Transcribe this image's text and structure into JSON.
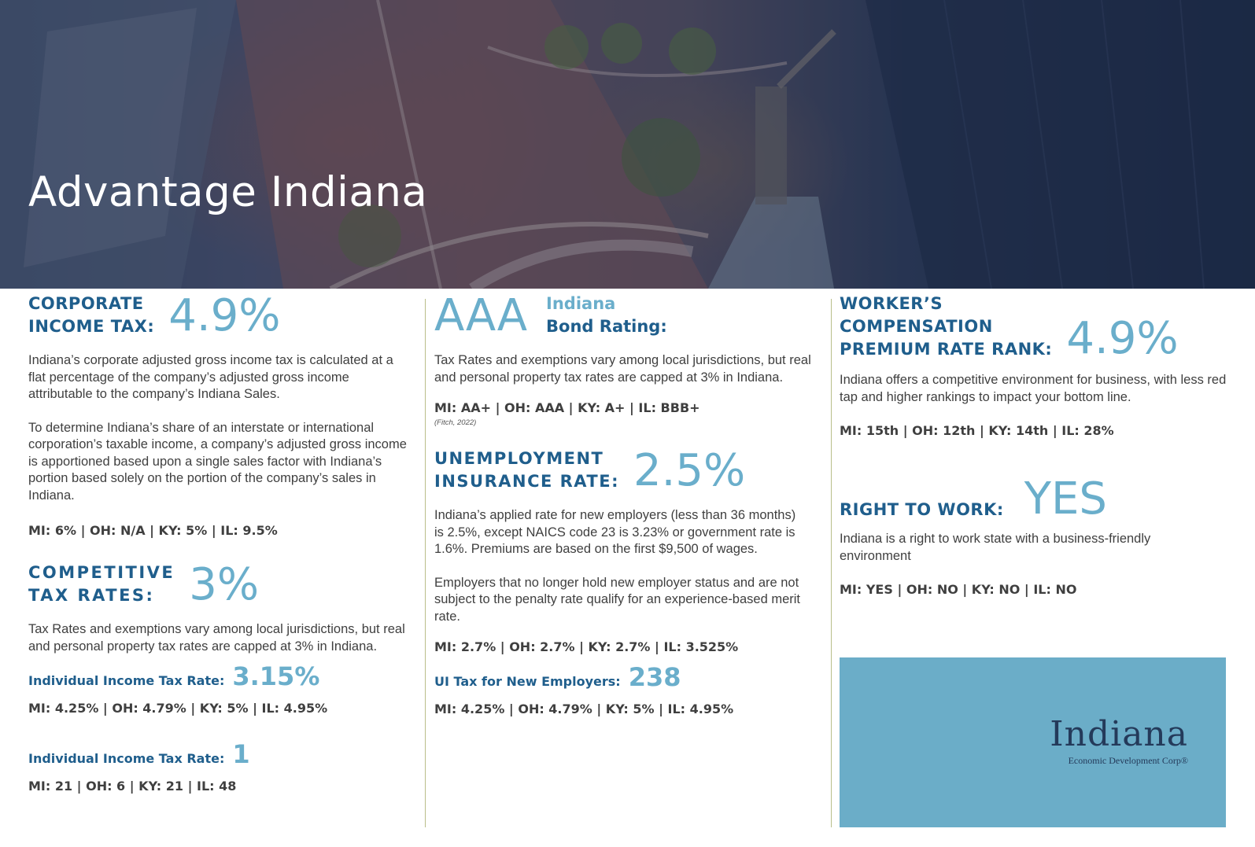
{
  "hero": {
    "title": "Advantage Indiana"
  },
  "corporate": {
    "label_line1": "CORPORATE",
    "label_line2": "INCOME TAX:",
    "value": "4.9%",
    "para1": "Indiana’s corporate adjusted gross income tax is calculated at a flat percentage of the company’s adjusted gross income attributable to the company’s Indiana Sales.",
    "para2": "To determine Indiana’s share of an interstate or international corporation’s taxable income, a company’s adjusted gross income is apportioned based upon a single sales factor with Indiana’s portion based solely on the portion of the company’s sales in Indiana.",
    "compare": "MI: 6%  |  OH: N/A  |  KY: 5%  |  IL: 9.5%"
  },
  "competitive": {
    "label_line1": "COMPETITIVE",
    "label_line2": "TAX RATES:",
    "value": "3%",
    "para": "Tax Rates and exemptions vary among local jurisdictions, but real and personal property tax rates are capped at 3% in Indiana.",
    "sub1_label": "Individual Income Tax Rate:",
    "sub1_value": "3.15%",
    "sub1_compare": "MI: 4.25%  |  OH: 4.79%  |  KY: 5%  |  IL: 4.95%",
    "sub2_label": "Individual Income Tax Rate:",
    "sub2_value": "1",
    "sub2_compare": "MI: 21  |  OH: 6  |  KY: 21  |  IL: 48"
  },
  "bond": {
    "value": "AAA",
    "label_line1": "Indiana",
    "label_line2": "Bond Rating:",
    "para": "Tax Rates and exemptions vary among local jurisdictions, but real and personal property tax rates are capped at 3% in Indiana.",
    "compare": "MI: AA+  |  OH: AAA  |  KY: A+  |  IL: BBB+",
    "source": "(Fitch, 2022)"
  },
  "unemployment": {
    "label_line1": "UNEMPLOYMENT",
    "label_line2": "INSURANCE RATE:",
    "value": "2.5%",
    "para1": "Indiana’s applied rate for new employers (less than 36 months) is 2.5%, except NAICS code 23 is 3.23% or government rate is 1.6%. Premiums are based on the first $9,500 of wages.",
    "para2": "Employers that no longer hold new employer status and are not subject to the penalty rate qualify for an experience-based merit rate.",
    "compare": "MI: 2.7%  |  OH: 2.7%  |  KY: 2.7%  |  IL: 3.525%",
    "sub_label": "UI Tax for New Employers:",
    "sub_value": "238",
    "sub_compare": "MI: 4.25%  |  OH: 4.79%  |  KY: 5%  |  IL: 4.95%"
  },
  "workers": {
    "label_line1": "WORKER’S",
    "label_line2": "COMPENSATION",
    "label_line3": "PREMIUM RATE RANK:",
    "value": "4.9%",
    "para": "Indiana offers a competitive environment for business, with less red tap and higher rankings to impact your bottom line.",
    "compare": "MI: 15th  |  OH: 12th  |  KY: 14th  |  IL: 28%"
  },
  "right_to_work": {
    "label": "RIGHT TO WORK:",
    "value": "YES",
    "para": "Indiana is a right to work state with a business-friendly environment",
    "compare": "MI: YES  |  OH: NO  |  KY: NO  |  IL: NO"
  },
  "logo": {
    "word": "Indiana",
    "sub": "Economic Development Corp®",
    "bg_color": "#6badc8"
  },
  "colors": {
    "navy": "#1f5e8c",
    "light_blue": "#6aaecb",
    "text": "#3f3f3f",
    "divider": "#b9be8a"
  }
}
